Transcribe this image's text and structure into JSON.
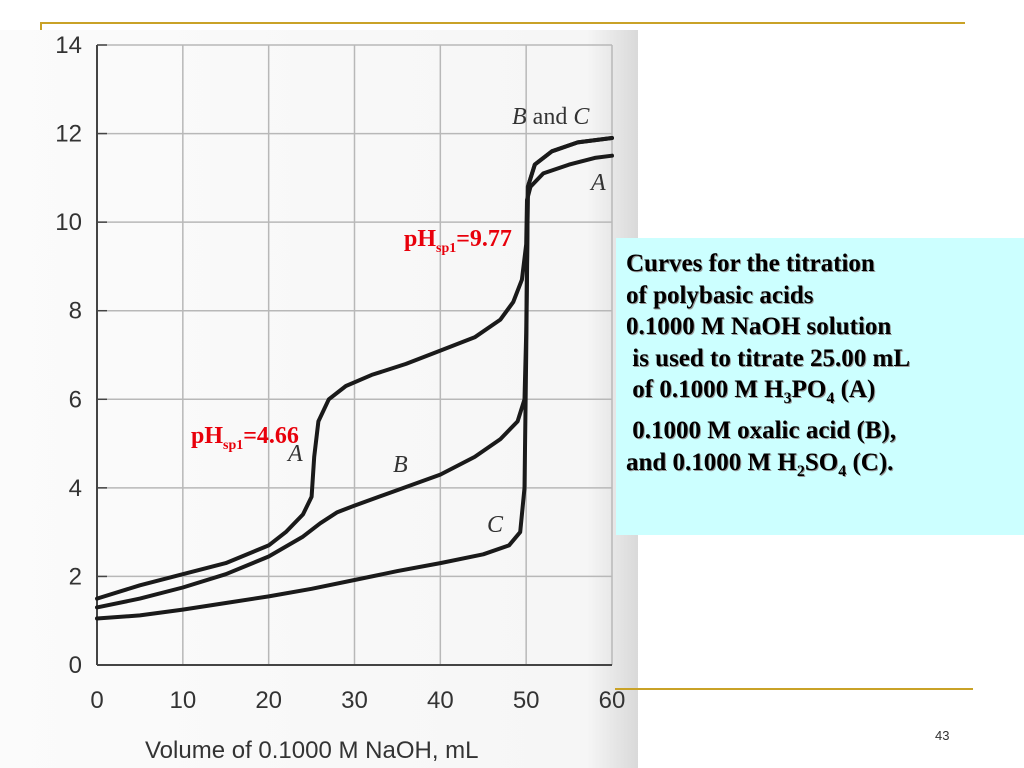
{
  "slide": {
    "number": "43"
  },
  "chart_data": {
    "type": "line",
    "xlabel": "Volume of 0.1000 M NaOH, mL",
    "ylabel": "",
    "xlim": [
      0,
      60
    ],
    "ylim": [
      0,
      14
    ],
    "xticks": [
      "0",
      "10",
      "20",
      "30",
      "40",
      "50",
      "60"
    ],
    "yticks": [
      "0",
      "2",
      "4",
      "6",
      "8",
      "10",
      "12",
      "14"
    ],
    "grid": true,
    "series": [
      {
        "name": "A",
        "points": [
          [
            0,
            1.5
          ],
          [
            5,
            1.8
          ],
          [
            10,
            2.05
          ],
          [
            15,
            2.3
          ],
          [
            20,
            2.7
          ],
          [
            22,
            3.0
          ],
          [
            24,
            3.4
          ],
          [
            25,
            3.8
          ],
          [
            25.3,
            4.7
          ],
          [
            25.8,
            5.5
          ],
          [
            27,
            6.0
          ],
          [
            29,
            6.3
          ],
          [
            32,
            6.55
          ],
          [
            36,
            6.8
          ],
          [
            40,
            7.1
          ],
          [
            44,
            7.4
          ],
          [
            47,
            7.8
          ],
          [
            48.5,
            8.2
          ],
          [
            49.5,
            8.7
          ],
          [
            50,
            9.5
          ],
          [
            50.1,
            10.5
          ],
          [
            50.5,
            10.8
          ],
          [
            52,
            11.1
          ],
          [
            55,
            11.3
          ],
          [
            58,
            11.45
          ],
          [
            60,
            11.5
          ]
        ]
      },
      {
        "name": "B",
        "points": [
          [
            0,
            1.3
          ],
          [
            5,
            1.5
          ],
          [
            10,
            1.75
          ],
          [
            15,
            2.05
          ],
          [
            20,
            2.45
          ],
          [
            24,
            2.9
          ],
          [
            26,
            3.2
          ],
          [
            28,
            3.45
          ],
          [
            30,
            3.6
          ],
          [
            35,
            3.95
          ],
          [
            40,
            4.3
          ],
          [
            44,
            4.7
          ],
          [
            47,
            5.1
          ],
          [
            49,
            5.5
          ],
          [
            49.8,
            6.0
          ],
          [
            50,
            7.5
          ],
          [
            50.2,
            10.8
          ],
          [
            51,
            11.3
          ],
          [
            53,
            11.6
          ],
          [
            56,
            11.8
          ],
          [
            60,
            11.9
          ]
        ]
      },
      {
        "name": "C",
        "points": [
          [
            0,
            1.05
          ],
          [
            5,
            1.12
          ],
          [
            10,
            1.25
          ],
          [
            15,
            1.4
          ],
          [
            20,
            1.55
          ],
          [
            25,
            1.72
          ],
          [
            30,
            1.92
          ],
          [
            35,
            2.12
          ],
          [
            40,
            2.3
          ],
          [
            45,
            2.5
          ],
          [
            48,
            2.7
          ],
          [
            49.3,
            3.0
          ],
          [
            49.8,
            4.0
          ],
          [
            50,
            7.0
          ],
          [
            50.2,
            10.8
          ],
          [
            51,
            11.3
          ],
          [
            53,
            11.6
          ],
          [
            56,
            11.8
          ],
          [
            60,
            11.9
          ]
        ]
      }
    ],
    "curve_labels": {
      "b_and_c_prefix": "B",
      "b_and_c_conj": "and",
      "b_and_c_suffix": "C",
      "a_top": "A",
      "a_buffer": "A",
      "b": "B",
      "c": "C"
    },
    "annotations": [
      {
        "text": "pH",
        "sub": "sp1",
        "value": "=9.77"
      },
      {
        "text": "pH",
        "sub": "sp1",
        "value": "=4.66"
      }
    ],
    "annotation_color": "#e8000b"
  },
  "info_box": {
    "background": "#ccffff",
    "line1": "Curves for the titration",
    "line2": "of polybasic acids",
    "line3": "0.1000 M NaOH solution",
    "line4": " is used to titrate 25.00 mL",
    "line5_a": " of 0.1000 M H",
    "line5_b": "3",
    "line5_c": "PO",
    "line5_d": "4",
    "line5_e": " (A)",
    "line6": " 0.1000 M oxalic acid (B),",
    "line7_a": "and 0.1000 M H",
    "line7_b": "2",
    "line7_c": "SO",
    "line7_d": "4",
    "line7_e": " (C)."
  }
}
